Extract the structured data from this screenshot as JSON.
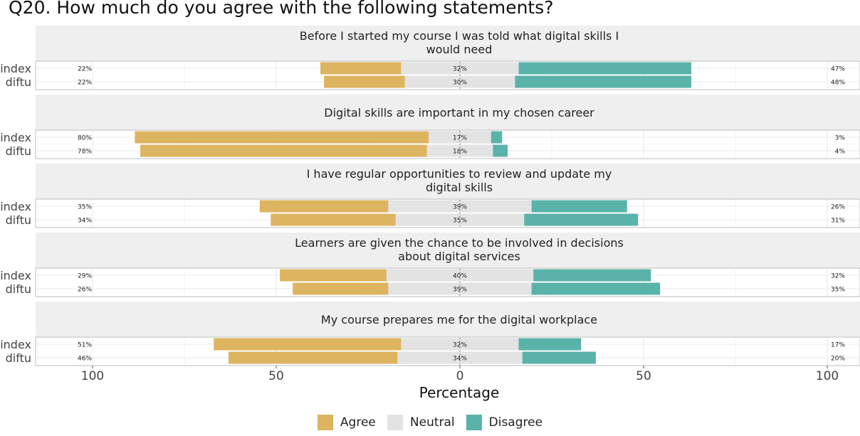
{
  "colors": {
    "agree": "#DDB460",
    "neutral": "#E3E3E3",
    "disagree": "#5AB3A9",
    "panel_strip": "#EFEFEF"
  },
  "chart_data": {
    "type": "bar",
    "orientation": "horizontal",
    "stacking": "diverging",
    "title": "Q20. How much do you agree with the following statements?",
    "xlabel": "Percentage",
    "xlim": [
      -100,
      100
    ],
    "x_ticks": [
      -100,
      -50,
      0,
      50,
      100
    ],
    "x_tick_labels": [
      "100",
      "50",
      "0",
      "50",
      "100"
    ],
    "legend": {
      "position": "bottom",
      "items": [
        "Agree",
        "Neutral",
        "Disagree"
      ]
    },
    "panels": [
      {
        "title": "Before I started my course I was told what digital skills I would need",
        "title_lines": [
          "Before I started my course I was told what digital skills I",
          "would need"
        ],
        "rows": [
          {
            "group": "index",
            "agree": 22,
            "neutral": 32,
            "disagree": 47,
            "agree_label": "22%",
            "neutral_label": "32%",
            "disagree_label": "47%"
          },
          {
            "group": "diftu",
            "agree": 22,
            "neutral": 30,
            "disagree": 48,
            "agree_label": "22%",
            "neutral_label": "30%",
            "disagree_label": "48%"
          }
        ]
      },
      {
        "title": "Digital skills are important in my chosen career",
        "title_lines": [
          "Digital skills are important in my chosen career"
        ],
        "rows": [
          {
            "group": "index",
            "agree": 80,
            "neutral": 17,
            "disagree": 3,
            "agree_label": "80%",
            "neutral_label": "17%",
            "disagree_label": "3%"
          },
          {
            "group": "diftu",
            "agree": 78,
            "neutral": 18,
            "disagree": 4,
            "agree_label": "78%",
            "neutral_label": "18%",
            "disagree_label": "4%"
          }
        ]
      },
      {
        "title": "I have regular opportunities to review and update my digital skills",
        "title_lines": [
          "I have regular opportunities to review and update my",
          "digital skills"
        ],
        "rows": [
          {
            "group": "index",
            "agree": 35,
            "neutral": 39,
            "disagree": 26,
            "agree_label": "35%",
            "neutral_label": "39%",
            "disagree_label": "26%"
          },
          {
            "group": "diftu",
            "agree": 34,
            "neutral": 35,
            "disagree": 31,
            "agree_label": "34%",
            "neutral_label": "35%",
            "disagree_label": "31%"
          }
        ]
      },
      {
        "title": "Learners are given the chance to be involved in decisions about digital services",
        "title_lines": [
          "Learners are given the chance to be involved in decisions",
          "about digital services"
        ],
        "rows": [
          {
            "group": "index",
            "agree": 29,
            "neutral": 40,
            "disagree": 32,
            "agree_label": "29%",
            "neutral_label": "40%",
            "disagree_label": "32%"
          },
          {
            "group": "diftu",
            "agree": 26,
            "neutral": 39,
            "disagree": 35,
            "agree_label": "26%",
            "neutral_label": "39%",
            "disagree_label": "35%"
          }
        ]
      },
      {
        "title": "My course prepares me for the digital workplace",
        "title_lines": [
          "My course prepares me for the digital workplace"
        ],
        "rows": [
          {
            "group": "index",
            "agree": 51,
            "neutral": 32,
            "disagree": 17,
            "agree_label": "51%",
            "neutral_label": "32%",
            "disagree_label": "17%"
          },
          {
            "group": "diftu",
            "agree": 46,
            "neutral": 34,
            "disagree": 20,
            "agree_label": "46%",
            "neutral_label": "34%",
            "disagree_label": "20%"
          }
        ]
      }
    ]
  }
}
